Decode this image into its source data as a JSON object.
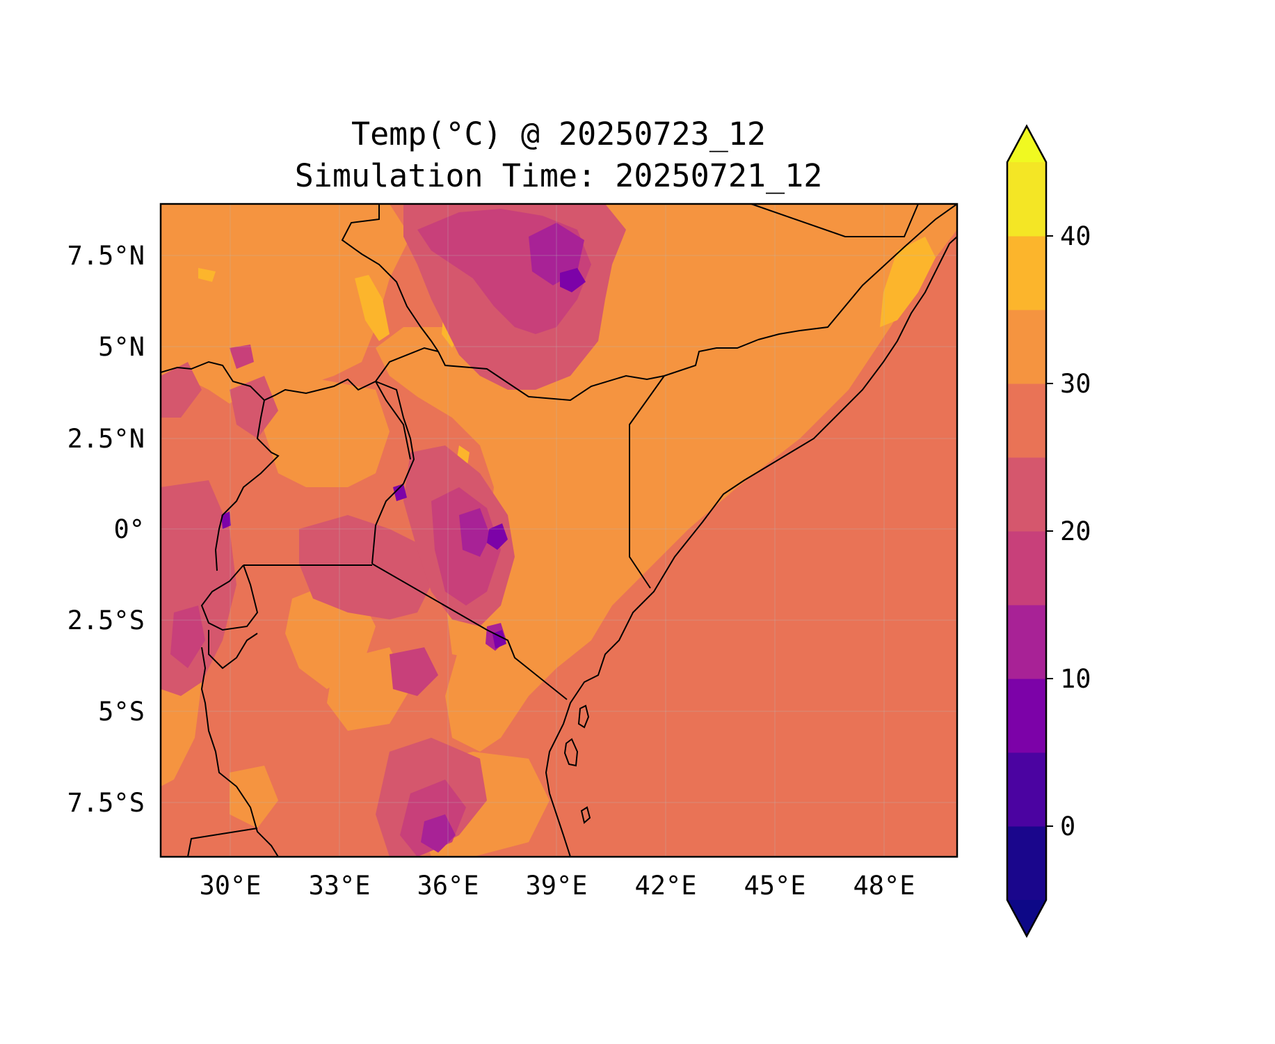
{
  "title": {
    "line1": "Temp(°C) @ 20250723_12",
    "line2": "Simulation Time: 20250721_12"
  },
  "chart_data": {
    "type": "heatmap",
    "variable": "Temp(°C)",
    "lon_range": [
      27.5,
      49.5
    ],
    "lat_range": [
      -9,
      8.8
    ],
    "x_ticks": [
      {
        "value": 30,
        "label": "30°E"
      },
      {
        "value": 33,
        "label": "33°E"
      },
      {
        "value": 36,
        "label": "36°E"
      },
      {
        "value": 39,
        "label": "39°E"
      },
      {
        "value": 42,
        "label": "42°E"
      },
      {
        "value": 45,
        "label": "45°E"
      },
      {
        "value": 48,
        "label": "48°E"
      }
    ],
    "y_ticks": [
      {
        "value": 7.5,
        "label": "7.5°N"
      },
      {
        "value": 5,
        "label": "5°N"
      },
      {
        "value": 2.5,
        "label": "2.5°N"
      },
      {
        "value": 0,
        "label": "0°"
      },
      {
        "value": -2.5,
        "label": "2.5°S"
      },
      {
        "value": -5,
        "label": "5°S"
      },
      {
        "value": -7.5,
        "label": "7.5°S"
      }
    ],
    "grid": true,
    "colorbar": {
      "position": "right",
      "extend": "both",
      "range": [
        -5,
        45
      ],
      "levels": [
        -5,
        0,
        5,
        10,
        15,
        20,
        25,
        30,
        35,
        40,
        45
      ],
      "colors": [
        "#1a068c",
        "#4b03a1",
        "#7c02a8",
        "#a82296",
        "#c8407a",
        "#d5576d",
        "#e97356",
        "#f59440",
        "#fcb52c",
        "#f4e625"
      ],
      "under_color": "#0d0887",
      "over_color": "#f0f921",
      "tick_values": [
        0,
        10,
        20,
        30,
        40
      ],
      "tick_labels": [
        "0",
        "10",
        "20",
        "30",
        "40"
      ]
    },
    "field_summary": {
      "ocean_band_C": [
        25,
        30
      ],
      "lowland_band_C": [
        30,
        35
      ],
      "highland_min_C": [
        5,
        10
      ],
      "hotspot_max_C": [
        35,
        40
      ]
    }
  }
}
